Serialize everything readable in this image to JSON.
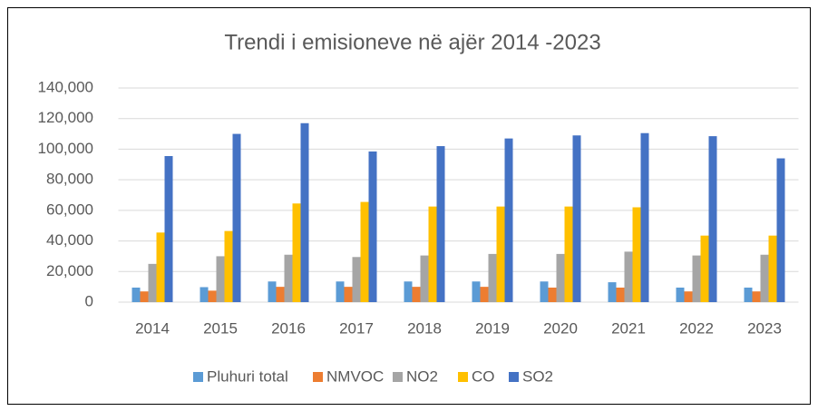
{
  "chart_data": {
    "type": "bar",
    "title": "Trendi i emisioneve në ajër 2014 -2023",
    "categories": [
      "2014",
      "2015",
      "2016",
      "2017",
      "2018",
      "2019",
      "2020",
      "2021",
      "2022",
      "2023"
    ],
    "series": [
      {
        "name": "Pluhuri total",
        "color": "#5b9bd5",
        "values": [
          9500,
          9800,
          13500,
          13500,
          13500,
          13500,
          13500,
          13000,
          9500,
          9500
        ]
      },
      {
        "name": "NMVOC",
        "color": "#ed7d31",
        "values": [
          7000,
          7500,
          10000,
          10000,
          10000,
          10000,
          9500,
          9500,
          7000,
          7000
        ]
      },
      {
        "name": "NO2",
        "color": "#a5a5a5",
        "values": [
          25000,
          30000,
          31000,
          29500,
          30500,
          31500,
          31500,
          33000,
          30500,
          31000
        ]
      },
      {
        "name": "CO",
        "color": "#ffc000",
        "values": [
          45500,
          46500,
          64500,
          65500,
          62500,
          62500,
          62500,
          62000,
          43500,
          43500
        ]
      },
      {
        "name": "SO2",
        "color": "#4472c4",
        "values": [
          95500,
          110000,
          117000,
          98500,
          102000,
          107000,
          109000,
          110500,
          108500,
          94000
        ]
      }
    ],
    "ylim": [
      0,
      140000
    ],
    "yticks": [
      0,
      {
        "value": 20000,
        "label": "20,000"
      },
      {
        "value": 40000,
        "label": "40,000"
      },
      {
        "value": 60000,
        "label": "60,000"
      },
      {
        "value": 80000,
        "label": "80,000"
      },
      {
        "value": 100000,
        "label": "100,000"
      },
      {
        "value": 120000,
        "label": "120,000"
      },
      {
        "value": 140000,
        "label": "140,000"
      }
    ],
    "grid": true,
    "legend": "bottom"
  }
}
